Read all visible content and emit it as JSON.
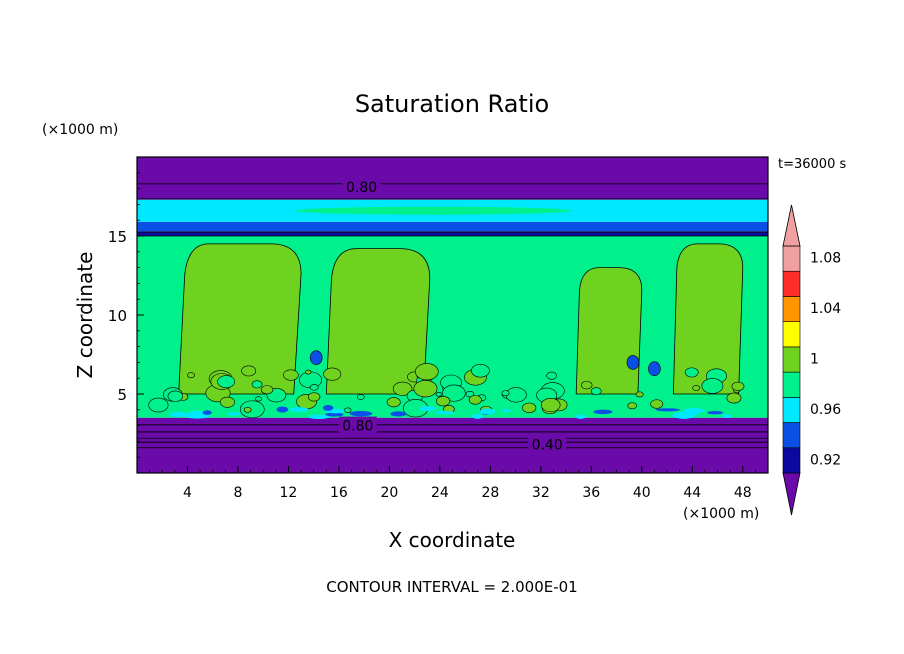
{
  "chart_data": {
    "type": "heatmap",
    "title": "Saturation Ratio",
    "xlabel": "X coordinate",
    "ylabel": "Z coordinate",
    "x_unit": "(×1000 m)",
    "z_unit": "(×1000 m)",
    "time_label": "t=36000 s",
    "footer": "CONTOUR INTERVAL = 2.000E-01",
    "xlim": [
      0,
      50
    ],
    "ylim": [
      0,
      20
    ],
    "x_ticks": [
      4,
      8,
      12,
      16,
      20,
      24,
      28,
      32,
      36,
      40,
      44,
      48
    ],
    "x_tick_labels": [
      "4",
      "8",
      "12",
      "16",
      "20",
      "24",
      "28",
      "32",
      "36",
      "40",
      "44",
      "48"
    ],
    "y_ticks": [
      5,
      10,
      15
    ],
    "y_tick_labels": [
      "5",
      "10",
      "15"
    ],
    "contour_labels": [
      {
        "text": "0.80",
        "x": 17.8,
        "z": 18.1
      },
      {
        "text": "0.80",
        "x": 17.5,
        "z": 3.0
      },
      {
        "text": "0.40",
        "x": 32.5,
        "z": 1.8
      }
    ],
    "colorbar": {
      "levels": [
        0.92,
        0.94,
        0.96,
        0.98,
        1.0,
        1.02,
        1.04,
        1.06,
        1.08,
        1.1
      ],
      "colors": [
        "#6a0aa8",
        "#0a0aa0",
        "#0a50e6",
        "#00e8ff",
        "#00f08c",
        "#6ed21e",
        "#ffff00",
        "#ff9600",
        "#ff2d28",
        "#f0a0a0"
      ],
      "tick_labels": [
        "0.92",
        "0.96",
        "1",
        "1.04",
        "1.08"
      ],
      "tick_values": [
        0.92,
        0.96,
        1.0,
        1.04,
        1.08
      ]
    },
    "bands": [
      {
        "z0": 0.0,
        "z1": 3.5,
        "value": 0.4
      },
      {
        "z0": 3.5,
        "z1": 15.0,
        "value": 0.99
      },
      {
        "z0": 15.0,
        "z1": 15.3,
        "value": 0.93
      },
      {
        "z0": 15.3,
        "z1": 15.9,
        "value": 0.95
      },
      {
        "z0": 15.9,
        "z1": 17.3,
        "value": 0.97
      },
      {
        "z0": 17.3,
        "z1": 20.0,
        "value": 0.8
      }
    ],
    "cloud_plumes": [
      {
        "x0": 3.3,
        "x1": 13.0,
        "z_top": 14.5
      },
      {
        "x0": 15.0,
        "x1": 23.2,
        "z_top": 14.2
      },
      {
        "x0": 34.8,
        "x1": 40.0,
        "z_top": 13.0
      },
      {
        "x0": 42.5,
        "x1": 48.0,
        "z_top": 14.5
      }
    ]
  }
}
